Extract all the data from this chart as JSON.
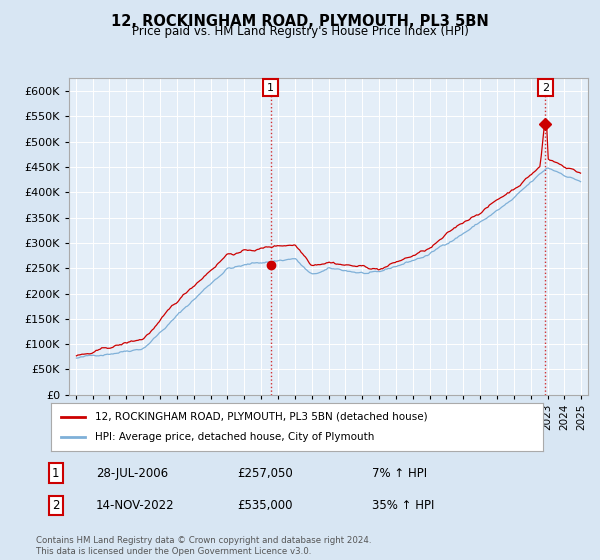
{
  "title": "12, ROCKINGHAM ROAD, PLYMOUTH, PL3 5BN",
  "subtitle": "Price paid vs. HM Land Registry's House Price Index (HPI)",
  "bg_color": "#d8e6f3",
  "plot_bg_color": "#e4eef8",
  "grid_color": "#ffffff",
  "hpi_color": "#7fb0d8",
  "price_color": "#cc0000",
  "sale1_date_label": "28-JUL-2006",
  "sale1_price": 257050,
  "sale1_pct": "7% ↑ HPI",
  "sale2_date_label": "14-NOV-2022",
  "sale2_price": 535000,
  "sale2_pct": "35% ↑ HPI",
  "sale1_x": 2006.57,
  "sale2_x": 2022.87,
  "ylabel_vals": [
    0,
    50000,
    100000,
    150000,
    200000,
    250000,
    300000,
    350000,
    400000,
    450000,
    500000,
    550000,
    600000
  ],
  "ylim": [
    0,
    625000
  ],
  "xlim_left": 1994.6,
  "xlim_right": 2025.4,
  "footnote": "Contains HM Land Registry data © Crown copyright and database right 2024.\nThis data is licensed under the Open Government Licence v3.0.",
  "legend_label1": "12, ROCKINGHAM ROAD, PLYMOUTH, PL3 5BN (detached house)",
  "legend_label2": "HPI: Average price, detached house, City of Plymouth"
}
